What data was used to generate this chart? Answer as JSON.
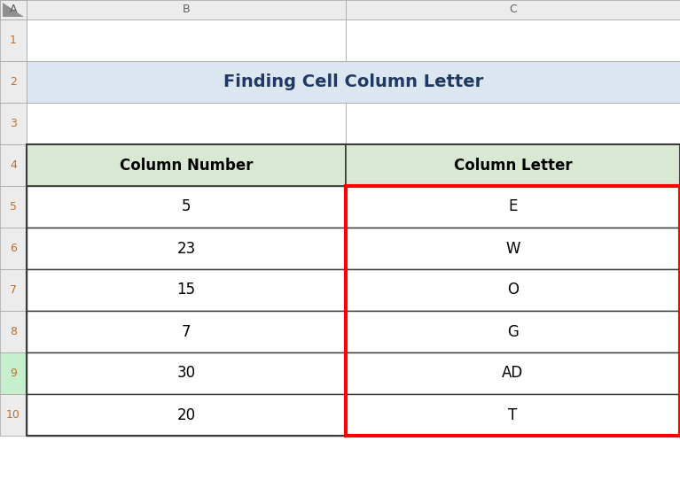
{
  "title": "Finding Cell Column Letter",
  "title_bg": "#dce6f1",
  "title_color": "#1f3864",
  "header_bg": "#d9e8d2",
  "col_headers": [
    "Column Number",
    "Column Letter"
  ],
  "col_numbers": [
    "5",
    "23",
    "15",
    "7",
    "30",
    "20"
  ],
  "col_letters": [
    "E",
    "W",
    "O",
    "G",
    "AD",
    "T"
  ],
  "excel_col_labels": [
    "A",
    "B",
    "C"
  ],
  "excel_row_labels": [
    "1",
    "2",
    "3",
    "4",
    "5",
    "6",
    "7",
    "8",
    "9",
    "10"
  ],
  "col_header_bg": "#ececec",
  "row9_bg": "#c6efce",
  "cell_bg": "#ffffff",
  "red_border_color": "#ff0000",
  "grid_color": "#a0a0a0",
  "dark_border": "#3a3a3a",
  "text_color": "#000000",
  "row_num_color": "#c07030",
  "col_label_color": "#606060",
  "figure_bg": "#ffffff",
  "corner_bg": "#d0d0d0",
  "corner_tri_color": "#909090"
}
